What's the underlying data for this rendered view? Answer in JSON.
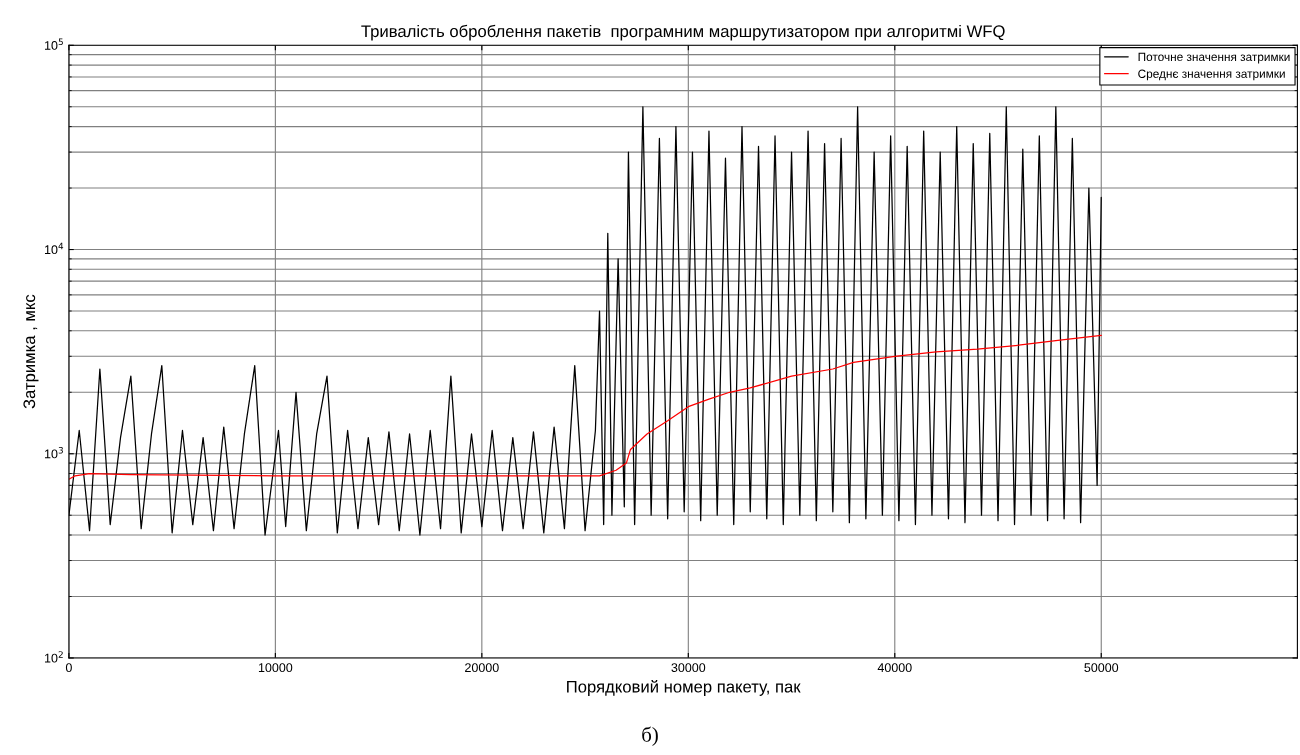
{
  "chart_data": {
    "type": "line",
    "title": "Тривалість оброблення пакетів  програмним маршрутизатором при алгоритмі WFQ",
    "xlabel": "Порядковий номер пакету, пак",
    "ylabel": "Затримка , мкс",
    "annotations": [
      "б)"
    ],
    "log": "y",
    "grid": true,
    "legend": "top right",
    "line_style": "solid",
    "marker": "none",
    "xlim": [
      0,
      59500
    ],
    "xticks": [
      0,
      10000,
      20000,
      30000,
      40000,
      50000
    ],
    "ylim": [
      100,
      100000
    ],
    "yticks": [
      {
        "value": 100,
        "label": "10$^{2}$"
      },
      {
        "value": 1000,
        "label": "10$^{3}$"
      },
      {
        "value": 10000,
        "label": "10$^{4}$"
      },
      {
        "value": 100000,
        "label": "10$^{5}$"
      }
    ],
    "series": [
      {
        "name": "Поточне значення затримки",
        "color": "#000000",
        "x": [
          0,
          500,
          1000,
          1500,
          2000,
          2500,
          3000,
          3500,
          4000,
          4500,
          5000,
          5500,
          6000,
          6500,
          7000,
          7500,
          8000,
          8500,
          9000,
          9500,
          10150,
          10500,
          11000,
          11500,
          12000,
          12500,
          13000,
          13500,
          14000,
          14500,
          15000,
          15500,
          16000,
          16500,
          17000,
          17500,
          18000,
          18500,
          19000,
          19500,
          20000,
          20500,
          21000,
          21500,
          22000,
          22500,
          23000,
          23500,
          24000,
          24500,
          25000,
          25500,
          25700,
          25900,
          26100,
          26300,
          26600,
          26900,
          27100,
          27400,
          27800,
          28200,
          28600,
          29000,
          29400,
          29800,
          30200,
          30600,
          31000,
          31400,
          31800,
          32200,
          32600,
          33000,
          33400,
          33800,
          34200,
          34600,
          35000,
          35400,
          35800,
          36200,
          36600,
          37000,
          37400,
          37800,
          38200,
          38600,
          39000,
          39400,
          39800,
          40200,
          40600,
          41000,
          41400,
          41800,
          42200,
          42600,
          43000,
          43400,
          43800,
          44200,
          44600,
          45000,
          45400,
          45800,
          46200,
          46600,
          47000,
          47400,
          47800,
          48200,
          48600,
          49000,
          49400,
          49800,
          50000
        ],
        "values": [
          500,
          1300,
          420,
          2600,
          450,
          1200,
          2400,
          430,
          1250,
          2700,
          410,
          1300,
          450,
          1200,
          420,
          1350,
          430,
          1250,
          2700,
          400,
          1300,
          440,
          2000,
          420,
          1250,
          2400,
          410,
          1300,
          430,
          1200,
          450,
          1280,
          420,
          1250,
          400,
          1300,
          430,
          2400,
          410,
          1250,
          440,
          1300,
          420,
          1200,
          430,
          1280,
          410,
          1350,
          430,
          2700,
          420,
          1300,
          5000,
          450,
          12000,
          500,
          9000,
          550,
          30000,
          450,
          50000,
          500,
          35000,
          480,
          40000,
          520,
          30000,
          470,
          38000,
          500,
          28000,
          450,
          40000,
          520,
          32000,
          480,
          36000,
          450,
          30000,
          500,
          38000,
          470,
          33000,
          520,
          35000,
          460,
          50000,
          480,
          30000,
          500,
          36000,
          470,
          32000,
          450,
          38000,
          500,
          30000,
          480,
          40000,
          460,
          33000,
          500,
          37000,
          470,
          50000,
          450,
          31000,
          500,
          36000,
          470,
          50000,
          480,
          35000,
          460,
          20000,
          700,
          18000
        ]
      },
      {
        "name": "Среднє значення затримки",
        "color": "#ff0000",
        "x": [
          0,
          300,
          1000,
          3000,
          10000,
          20000,
          25700,
          26500,
          27000,
          27200,
          28000,
          29000,
          30000,
          31000,
          32000,
          33000,
          35000,
          37000,
          38000,
          40000,
          42000,
          44000,
          46000,
          48000,
          50000
        ],
        "values": [
          750,
          780,
          800,
          790,
          780,
          780,
          780,
          830,
          900,
          1050,
          1250,
          1450,
          1700,
          1850,
          2000,
          2100,
          2400,
          2600,
          2800,
          3000,
          3150,
          3250,
          3400,
          3600,
          3800
        ]
      }
    ]
  }
}
